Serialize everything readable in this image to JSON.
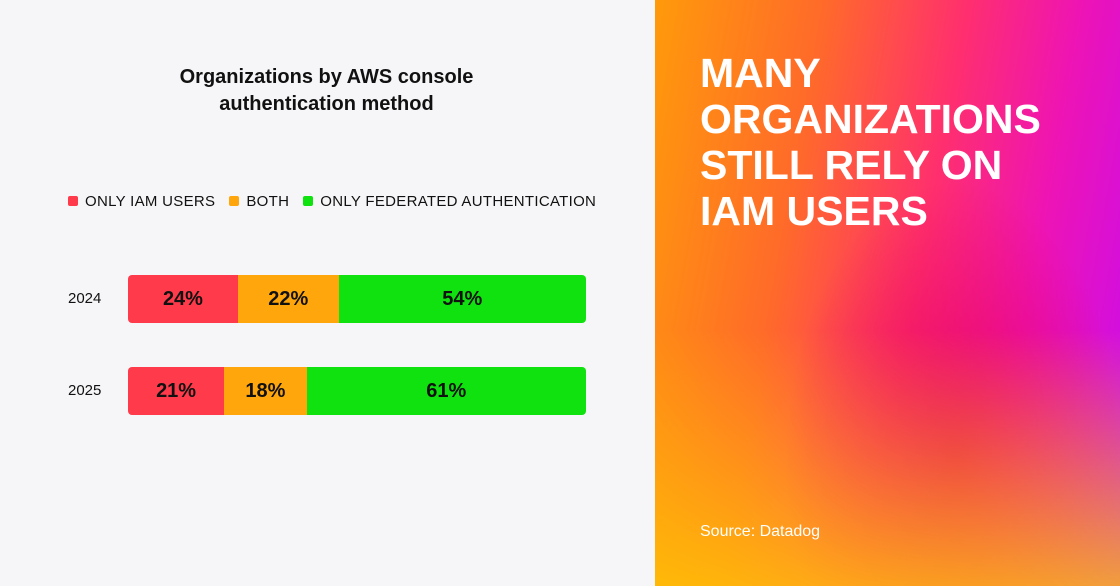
{
  "chart_data": {
    "type": "bar",
    "orientation": "horizontal",
    "stacked": true,
    "title_lines": [
      "Organizations by AWS console",
      "authentication method"
    ],
    "categories": [
      "2024",
      "2025"
    ],
    "series": [
      {
        "name": "ONLY IAM USERS",
        "values": [
          24,
          21
        ],
        "color": "#ff3b4b"
      },
      {
        "name": "BOTH",
        "values": [
          22,
          18
        ],
        "color": "#ffa60d"
      },
      {
        "name": "ONLY FEDERATED AUTHENTICATION",
        "values": [
          54,
          61
        ],
        "color": "#0fe20f"
      }
    ],
    "data_labels": [
      [
        "24%",
        "22%",
        "54%"
      ],
      [
        "21%",
        "18%",
        "61%"
      ]
    ],
    "value_unit": "%",
    "legend_position": "top",
    "grid": false
  },
  "headline": {
    "lines": [
      "MANY",
      "ORGANIZATIONS",
      "STILL RELY ON",
      "IAM USERS"
    ]
  },
  "source": "Source: Datadog"
}
